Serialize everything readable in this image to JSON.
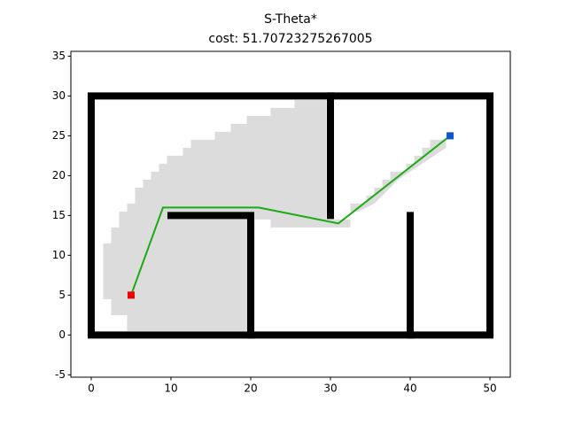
{
  "chart_data": {
    "type": "path",
    "title": "S-Theta*",
    "subtitle": "cost: 51.70723275267005",
    "xlim": [
      -2.55,
      52.55
    ],
    "ylim": [
      -5.3,
      35.6
    ],
    "xticks": [
      0,
      10,
      20,
      30,
      40,
      50
    ],
    "yticks": [
      -5,
      0,
      5,
      10,
      15,
      20,
      25,
      30,
      35
    ],
    "explored_color": "#dcdcdc",
    "explored": [
      {
        "x": [
          1.5,
          1.5,
          2.5,
          2.5,
          3.5,
          3.5,
          4.5,
          4.5,
          5.5,
          5.5,
          6.5,
          6.5,
          7.5,
          7.5,
          8.5,
          8.5,
          9.5,
          9.5,
          11.5,
          11.5,
          12.5,
          12.5,
          15.5,
          15.5,
          17.5,
          17.5,
          19.5,
          19.5,
          22.5,
          22.5,
          25.5,
          25.5,
          29.5,
          29.5,
          32.5,
          32.5,
          22.5,
          22.5,
          20.5,
          20.5,
          4.5,
          4.5,
          2.5,
          2.5
        ],
        "y": [
          4.5,
          11.5,
          11.5,
          13.5,
          13.5,
          15.5,
          15.5,
          16.5,
          16.5,
          18.5,
          18.5,
          19.5,
          19.5,
          20.5,
          20.5,
          21.5,
          21.5,
          22.5,
          22.5,
          23.5,
          23.5,
          24.5,
          24.5,
          25.5,
          25.5,
          26.5,
          26.5,
          27.5,
          27.5,
          28.5,
          28.5,
          29.5,
          29.5,
          14.5,
          14.5,
          13.5,
          13.5,
          14.5,
          14.5,
          0.5,
          0.5,
          2.5,
          2.5,
          4.5
        ]
      },
      {
        "x": [
          32.5,
          34.5,
          34.5,
          35.5,
          35.5,
          36.5,
          36.5,
          37.5,
          37.5,
          39.5,
          39.5,
          40.5,
          40.5,
          41.5,
          41.5,
          42.5,
          42.5,
          44.5,
          44.5,
          41.5,
          38.5,
          35.5,
          33.5,
          32.5
        ],
        "y": [
          16.5,
          16.5,
          17.5,
          17.5,
          18.5,
          18.5,
          19.5,
          19.5,
          20.5,
          20.5,
          21.5,
          21.5,
          22.5,
          22.5,
          23.5,
          23.5,
          24.5,
          24.5,
          23.5,
          21.5,
          19.5,
          16.5,
          15.5,
          15.5
        ]
      }
    ],
    "obstacle_color": "#000000",
    "obstacles": [
      {
        "x": [
          0,
          50,
          50,
          0,
          0
        ],
        "y": [
          0,
          0,
          30,
          30,
          0
        ]
      },
      {
        "x": [
          30,
          30
        ],
        "y": [
          30,
          15
        ]
      },
      {
        "x": [
          10,
          20,
          20
        ],
        "y": [
          15,
          15,
          0
        ]
      },
      {
        "x": [
          40,
          40
        ],
        "y": [
          0,
          15
        ]
      }
    ],
    "path": {
      "x": [
        5,
        9,
        21,
        31,
        45
      ],
      "y": [
        5,
        16,
        16,
        14,
        25
      ],
      "color": "#1aaa12"
    },
    "start": {
      "x": 5,
      "y": 5,
      "color": "#ee0000"
    },
    "goal": {
      "x": 45,
      "y": 25,
      "color": "#1155cc"
    }
  }
}
